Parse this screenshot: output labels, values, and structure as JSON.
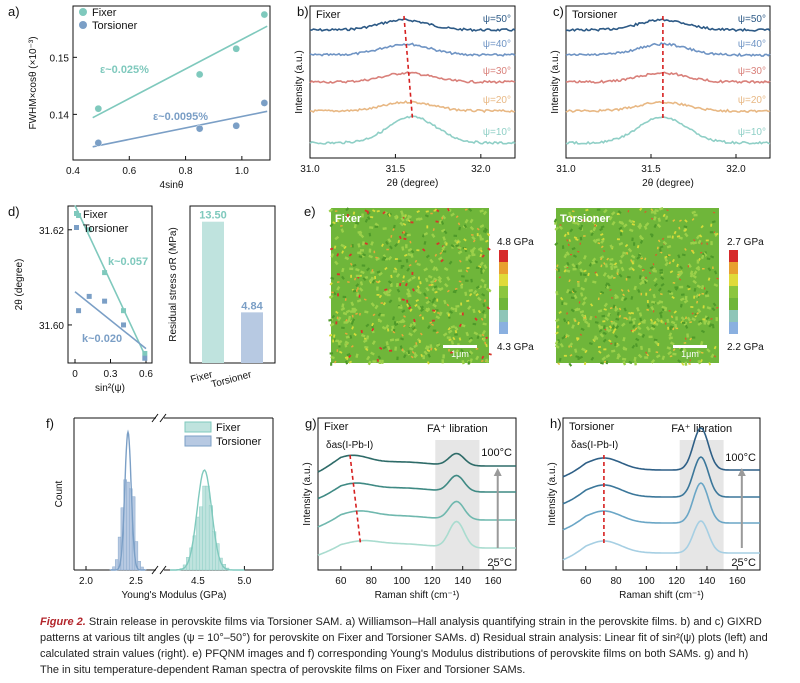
{
  "caption": {
    "label": "Figure 2.",
    "text": " Strain release in perovskite films via Torsioner SAM. a) Williamson–Hall analysis quantifying strain in the perovskite films. b) and c) GIXRD patterns at various tilt angles (ψ = 10°–50°) for perovskite on Fixer and Torsioner SAMs. d) Residual strain analysis: Linear fit of sin²(ψ) plots (left) and calculated strain values (right). e) PFQNM images and f) corresponding Young's Modulus distributions of perovskite films on both SAMs. g) and h) The in situ temperature-dependent Raman spectra of perovskite films on Fixer and Torsioner SAMs."
  },
  "colors": {
    "fixer": "#7fc9bd",
    "torsioner": "#7b9fc6",
    "fixer_bar": "#bfe3de",
    "torsioner_bar": "#b7c9e2",
    "guide": "#d62020"
  },
  "chart_data": [
    {
      "panel": "a",
      "type": "scatter",
      "xlabel": "4sinθ",
      "ylabel": "FWHM×cosθ (×10⁻³)",
      "xlim": [
        0.4,
        1.1
      ],
      "ylim": [
        0.132,
        0.159
      ],
      "xticks": [
        "0.4",
        "0.6",
        "0.8",
        "1.0"
      ],
      "yticks": [
        "0.14",
        "0.15"
      ],
      "legend": [
        "Fixer",
        "Torsioner"
      ],
      "series": [
        {
          "name": "Fixer",
          "x": [
            0.49,
            0.85,
            0.98,
            1.08
          ],
          "y": [
            0.141,
            0.147,
            0.1515,
            0.1575
          ],
          "fit_label": "ε~0.025%"
        },
        {
          "name": "Torsioner",
          "x": [
            0.49,
            0.85,
            0.98,
            1.08
          ],
          "y": [
            0.135,
            0.1375,
            0.138,
            0.142
          ],
          "fit_label": "ε~0.0095%"
        }
      ]
    },
    {
      "panel": "b",
      "type": "line",
      "title": "Fixer",
      "xlabel": "2θ (degree)",
      "ylabel": "Intensity (a.u.)",
      "xlim": [
        31.0,
        32.2
      ],
      "xticks": [
        "31.0",
        "31.5",
        "32.0"
      ],
      "psi_labels": [
        "ψ=50°",
        "ψ=40°",
        "ψ=30°",
        "ψ=20°",
        "ψ=10°"
      ],
      "peak_positions": [
        31.55,
        31.56,
        31.57,
        31.58,
        31.6
      ]
    },
    {
      "panel": "c",
      "type": "line",
      "title": "Torsioner",
      "xlabel": "2θ (degree)",
      "ylabel": "Intensity (a.u.)",
      "xlim": [
        31.0,
        32.2
      ],
      "xticks": [
        "31.0",
        "31.5",
        "32.0"
      ],
      "psi_labels": [
        "ψ=50°",
        "ψ=40°",
        "ψ=30°",
        "ψ=20°",
        "ψ=10°"
      ],
      "peak_positions": [
        31.57,
        31.57,
        31.57,
        31.57,
        31.57
      ]
    },
    {
      "panel": "d-left",
      "type": "scatter",
      "xlabel": "sin²(ψ)",
      "ylabel": "2θ (degree)",
      "xlim": [
        0,
        0.6
      ],
      "ylim": [
        31.592,
        31.625
      ],
      "xticks": [
        "0",
        "0.3",
        "0.6"
      ],
      "yticks": [
        "31.62",
        "31.60"
      ],
      "legend": [
        "Fixer",
        "Torsioner"
      ],
      "series": [
        {
          "name": "Fixer",
          "x": [
            0.03,
            0.12,
            0.25,
            0.41,
            0.59
          ],
          "y": [
            31.623,
            31.62,
            31.611,
            31.603,
            31.594
          ],
          "fit_label": "k~0.057"
        },
        {
          "name": "Torsioner",
          "x": [
            0.03,
            0.12,
            0.25,
            0.41,
            0.59
          ],
          "y": [
            31.603,
            31.606,
            31.605,
            31.6,
            31.593
          ],
          "fit_label": "k~0.020"
        }
      ]
    },
    {
      "panel": "d-right",
      "type": "bar",
      "ylabel": "Residual stress σR (MPa)",
      "categories": [
        "Fixer",
        "Torsioner"
      ],
      "values": [
        13.5,
        4.84
      ],
      "value_labels": [
        "13.50",
        "4.84"
      ]
    },
    {
      "panel": "e",
      "type": "heatmap",
      "images": [
        {
          "title": "Fixer",
          "scale_max": "4.8 GPa",
          "scale_min": "4.3 GPa",
          "scale_bar": "1μm"
        },
        {
          "title": "Torsioner",
          "scale_max": "2.7 GPa",
          "scale_min": "2.2 GPa",
          "scale_bar": "1μm"
        }
      ]
    },
    {
      "panel": "f",
      "type": "bar",
      "xlabel": "Young's Modulus (GPa)",
      "ylabel": "Count",
      "xticks": [
        "2.0",
        "2.5",
        "4.5",
        "5.0"
      ],
      "legend": [
        "Fixer",
        "Torsioner"
      ],
      "series": [
        {
          "name": "Torsioner",
          "center": 2.42
        },
        {
          "name": "Fixer",
          "center": 4.57
        }
      ]
    },
    {
      "panel": "g",
      "type": "line",
      "title": "Fixer",
      "xlabel": "Raman shift (cm⁻¹)",
      "ylabel": "Intensity (a.u.)",
      "xlim": [
        45,
        175
      ],
      "xticks": [
        "60",
        "80",
        "100",
        "120",
        "140",
        "160"
      ],
      "mode_label": "δas(I-Pb-I)",
      "band_label": "FA⁺ libration",
      "temp_high": "100°C",
      "temp_low": "25°C"
    },
    {
      "panel": "h",
      "type": "line",
      "title": "Torsioner",
      "xlabel": "Raman shift (cm⁻¹)",
      "ylabel": "Intensity (a.u.)",
      "xlim": [
        45,
        175
      ],
      "xticks": [
        "60",
        "80",
        "100",
        "120",
        "140",
        "160"
      ],
      "mode_label": "δas(I-Pb-I)",
      "band_label": "FA⁺ libration",
      "temp_high": "100°C",
      "temp_low": "25°C"
    }
  ]
}
